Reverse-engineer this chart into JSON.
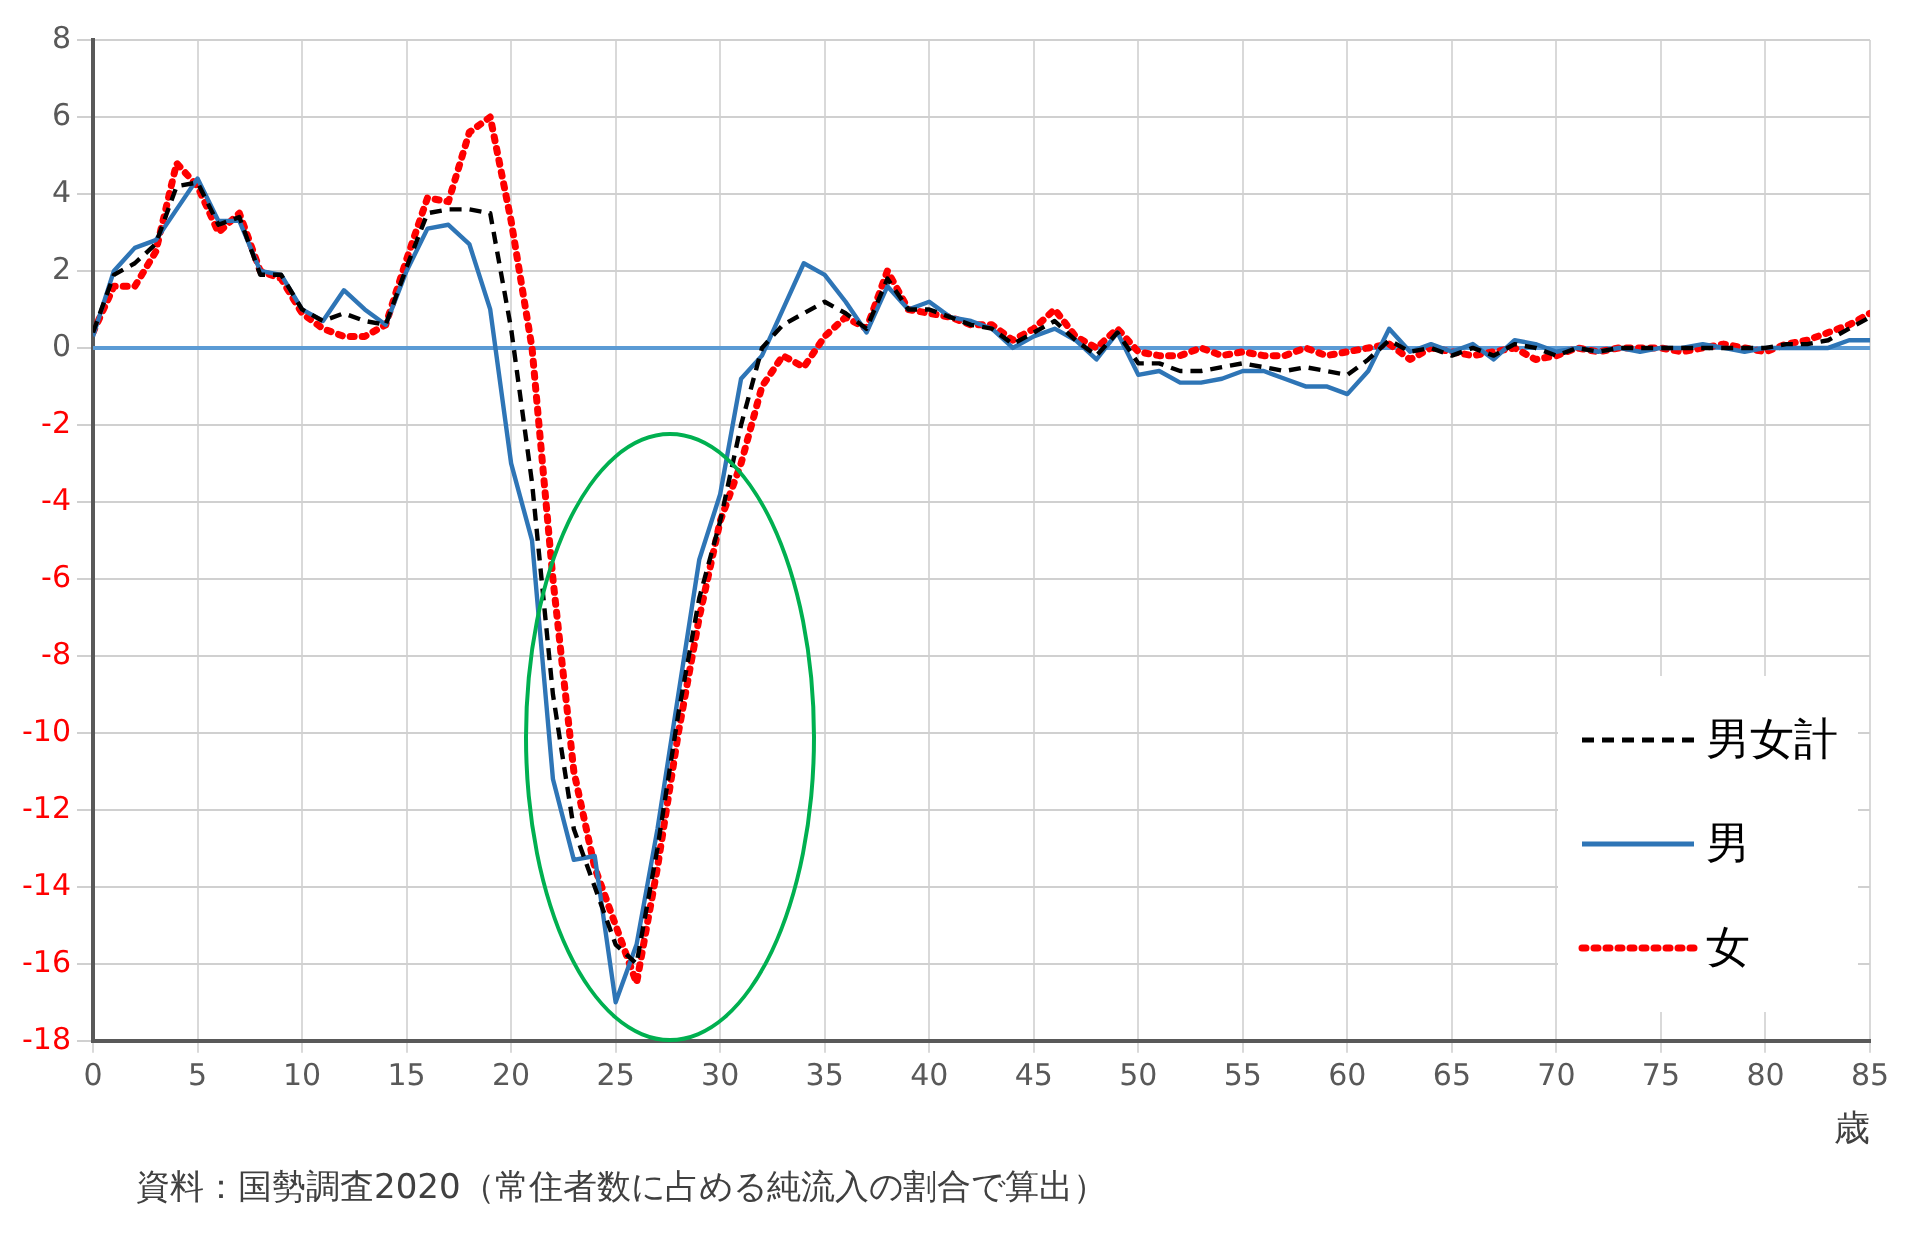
{
  "chart_data": {
    "type": "line",
    "xlabel": "歳",
    "annotations": [
      "資料：国勢調査2020（常住者数に占める純流入の割合で算出）"
    ],
    "x": [
      0,
      1,
      2,
      3,
      4,
      5,
      6,
      7,
      8,
      9,
      10,
      11,
      12,
      13,
      14,
      15,
      16,
      17,
      18,
      19,
      20,
      21,
      22,
      23,
      24,
      25,
      26,
      27,
      28,
      29,
      30,
      31,
      32,
      33,
      34,
      35,
      36,
      37,
      38,
      39,
      40,
      41,
      42,
      43,
      44,
      45,
      46,
      47,
      48,
      49,
      50,
      51,
      52,
      53,
      54,
      55,
      56,
      57,
      58,
      59,
      60,
      61,
      62,
      63,
      64,
      65,
      66,
      67,
      68,
      69,
      70,
      71,
      72,
      73,
      74,
      75,
      76,
      77,
      78,
      79,
      80,
      81,
      82,
      83,
      84,
      85
    ],
    "xlim": [
      0,
      85
    ],
    "xticks": [
      0,
      5,
      10,
      15,
      20,
      25,
      30,
      35,
      40,
      45,
      50,
      55,
      60,
      65,
      70,
      75,
      80,
      85
    ],
    "ylim": [
      -18,
      8
    ],
    "yticks": [
      -18,
      -16,
      -14,
      -12,
      -10,
      -8,
      -6,
      -4,
      -2,
      0,
      2,
      4,
      6,
      8
    ],
    "grid": true,
    "legend": "right",
    "marker": "none",
    "ref_lines": [
      {
        "axis": "y",
        "value": 0,
        "color": "#5b9bd5"
      }
    ],
    "series": [
      {
        "name": "男女計",
        "color": "#000000",
        "line_style": "dashed",
        "values": [
          0.4,
          1.9,
          2.2,
          2.7,
          4.2,
          4.3,
          3.2,
          3.4,
          1.9,
          1.9,
          1.0,
          0.7,
          0.9,
          0.7,
          0.6,
          2.1,
          3.5,
          3.6,
          3.6,
          3.5,
          0.5,
          -3.5,
          -9,
          -12.5,
          -14,
          -15.5,
          -16,
          -13,
          -9.5,
          -6.5,
          -4.5,
          -2,
          0,
          0.6,
          0.9,
          1.2,
          0.9,
          0.5,
          1.8,
          1.0,
          1.0,
          0.8,
          0.6,
          0.5,
          0.1,
          0.4,
          0.7,
          0.2,
          -0.2,
          0.4,
          -0.4,
          -0.4,
          -0.6,
          -0.6,
          -0.5,
          -0.4,
          -0.5,
          -0.6,
          -0.5,
          -0.6,
          -0.7,
          -0.3,
          0.2,
          -0.1,
          0,
          -0.2,
          0,
          -0.2,
          0.1,
          0,
          -0.2,
          0,
          -0.1,
          0,
          0,
          0,
          0,
          0,
          0,
          0,
          0,
          0.1,
          0.1,
          0.2,
          0.5,
          0.8
        ]
      },
      {
        "name": "男",
        "color": "#2e75b6",
        "line_style": "solid",
        "values": [
          0.3,
          2.0,
          2.6,
          2.8,
          3.6,
          4.4,
          3.3,
          3.3,
          2.0,
          1.9,
          1.0,
          0.7,
          1.5,
          1.0,
          0.6,
          2.0,
          3.1,
          3.2,
          2.7,
          1.0,
          -3.0,
          -5.0,
          -11.2,
          -13.3,
          -13.2,
          -17.0,
          -15.5,
          -12.5,
          -9.0,
          -5.5,
          -3.8,
          -0.8,
          -0.2,
          1.0,
          2.2,
          1.9,
          1.2,
          0.4,
          1.6,
          1.0,
          1.2,
          0.8,
          0.7,
          0.5,
          0,
          0.3,
          0.5,
          0.2,
          -0.3,
          0.4,
          -0.7,
          -0.6,
          -0.9,
          -0.9,
          -0.8,
          -0.6,
          -0.6,
          -0.8,
          -1.0,
          -1.0,
          -1.2,
          -0.6,
          0.5,
          -0.1,
          0.1,
          -0.1,
          0.1,
          -0.3,
          0.2,
          0.1,
          -0.1,
          0,
          -0.1,
          0,
          -0.1,
          0,
          0,
          0.1,
          0,
          -0.1,
          0,
          0,
          0,
          0,
          0.2,
          0.2
        ]
      },
      {
        "name": "女",
        "color": "#ff0000",
        "line_style": "dotted",
        "values": [
          0.4,
          1.6,
          1.6,
          2.5,
          4.8,
          4.2,
          3.0,
          3.5,
          2.0,
          1.8,
          0.9,
          0.5,
          0.3,
          0.3,
          0.6,
          2.3,
          3.9,
          3.8,
          5.6,
          6.0,
          3.3,
          0,
          -6,
          -11,
          -13.5,
          -15,
          -16.5,
          -13.5,
          -10,
          -7,
          -4.5,
          -3,
          -1,
          -0.2,
          -0.5,
          0.3,
          0.8,
          0.5,
          2.0,
          1.0,
          0.9,
          0.8,
          0.6,
          0.6,
          0.2,
          0.5,
          1.0,
          0.3,
          0,
          0.5,
          -0.1,
          -0.2,
          -0.2,
          0,
          -0.2,
          -0.1,
          -0.2,
          -0.2,
          0,
          -0.2,
          -0.1,
          0,
          0.1,
          -0.3,
          0,
          -0.1,
          -0.2,
          -0.1,
          0,
          -0.3,
          -0.2,
          0,
          -0.1,
          0,
          0,
          0,
          -0.1,
          0,
          0.1,
          0,
          -0.1,
          0.1,
          0.2,
          0.4,
          0.6,
          0.9
        ]
      }
    ]
  }
}
